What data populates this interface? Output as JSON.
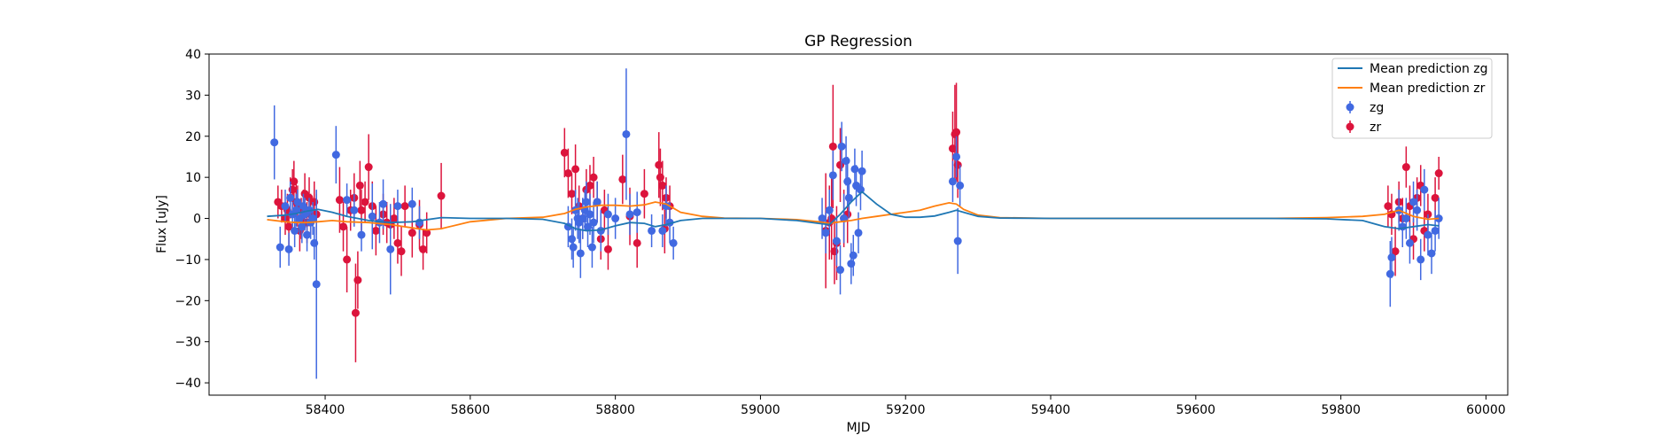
{
  "chart_data": {
    "type": "scatter",
    "title": "GP Regression",
    "xlabel": "MJD",
    "ylabel": "Flux [uJy]",
    "xlim": [
      58240,
      60030
    ],
    "ylim": [
      -43,
      40
    ],
    "xticks": [
      58400,
      58600,
      58800,
      59000,
      59200,
      59400,
      59600,
      59800,
      60000
    ],
    "yticks": [
      -40,
      -30,
      -20,
      -10,
      0,
      10,
      20,
      30,
      40
    ],
    "grid": false,
    "legend_position": "top-right",
    "colors": {
      "zg_points": "#4169e1",
      "zr_points": "#dc143c",
      "zg_mean": "#1f77b4",
      "zr_mean": "#ff7f0e"
    },
    "series": [
      {
        "name": "Mean prediction zg",
        "kind": "line",
        "x": [
          58320,
          58345,
          58360,
          58375,
          58390,
          58410,
          58430,
          58460,
          58490,
          58520,
          58560,
          58600,
          58650,
          58700,
          58730,
          58745,
          58760,
          58780,
          58800,
          58820,
          58840,
          58855,
          58870,
          58890,
          58920,
          58950,
          59000,
          59050,
          59080,
          59095,
          59110,
          59125,
          59140,
          59160,
          59180,
          59200,
          59220,
          59240,
          59260,
          59270,
          59280,
          59300,
          59330,
          59400,
          59500,
          59600,
          59700,
          59780,
          59830,
          59860,
          59880,
          59900,
          59920,
          59935
        ],
        "y": [
          0.5,
          0.8,
          1.2,
          1.8,
          2.2,
          1.5,
          0.5,
          -0.5,
          -1.0,
          -0.8,
          0.2,
          0.0,
          0.0,
          -0.2,
          -1.2,
          -2.5,
          -3.0,
          -2.8,
          -1.8,
          -1.0,
          -1.2,
          -2.0,
          -1.5,
          -0.5,
          0.0,
          0.0,
          0.0,
          -0.5,
          -1.2,
          -1.5,
          1.0,
          4.0,
          6.5,
          3.5,
          1.0,
          0.3,
          0.3,
          0.6,
          1.5,
          2.0,
          1.5,
          0.5,
          0.1,
          0.0,
          0.0,
          0.0,
          0.0,
          -0.1,
          -0.5,
          -2.0,
          -2.5,
          -2.0,
          -1.5,
          -1.8
        ]
      },
      {
        "name": "Mean prediction zr",
        "kind": "line",
        "x": [
          58320,
          58345,
          58360,
          58375,
          58390,
          58410,
          58430,
          58460,
          58490,
          58520,
          58540,
          58560,
          58600,
          58650,
          58700,
          58730,
          58745,
          58760,
          58780,
          58800,
          58820,
          58840,
          58855,
          58870,
          58890,
          58920,
          58950,
          59000,
          59050,
          59080,
          59095,
          59110,
          59125,
          59140,
          59160,
          59180,
          59200,
          59220,
          59240,
          59260,
          59270,
          59280,
          59300,
          59330,
          59400,
          59500,
          59600,
          59700,
          59780,
          59830,
          59860,
          59880,
          59900,
          59920,
          59935
        ],
        "y": [
          -0.3,
          -0.8,
          -1.0,
          -1.0,
          -0.8,
          -0.5,
          -0.8,
          -1.0,
          -1.5,
          -2.3,
          -2.8,
          -2.5,
          -0.8,
          0.0,
          0.3,
          1.2,
          2.2,
          2.8,
          3.2,
          3.2,
          3.0,
          3.3,
          4.0,
          3.5,
          1.5,
          0.5,
          0.1,
          0.0,
          -0.3,
          -0.8,
          -1.2,
          -0.8,
          -0.5,
          0.0,
          0.5,
          1.0,
          1.5,
          2.0,
          3.0,
          3.8,
          3.5,
          2.2,
          0.8,
          0.2,
          0.0,
          0.0,
          0.0,
          0.0,
          0.2,
          0.5,
          1.0,
          2.0,
          0.5,
          -0.2,
          0.0
        ]
      },
      {
        "name": "zg",
        "kind": "errorbar",
        "x": [
          58330,
          58338,
          58345,
          58350,
          58352,
          58355,
          58358,
          58360,
          58362,
          58365,
          58368,
          58370,
          58372,
          58375,
          58378,
          58380,
          58383,
          58385,
          58388,
          58415,
          58430,
          58440,
          58450,
          58465,
          58475,
          58480,
          58490,
          58500,
          58520,
          58530,
          58735,
          58740,
          58742,
          58745,
          58748,
          58750,
          58752,
          58755,
          58758,
          58760,
          58762,
          58765,
          58768,
          58770,
          58775,
          58780,
          58790,
          58800,
          58815,
          58820,
          58830,
          58850,
          58865,
          58870,
          58875,
          58880,
          59085,
          59090,
          59095,
          59100,
          59105,
          59110,
          59112,
          59115,
          59118,
          59120,
          59122,
          59125,
          59128,
          59130,
          59132,
          59135,
          59138,
          59140,
          59265,
          59270,
          59272,
          59275,
          59868,
          59870,
          59880,
          59885,
          59890,
          59895,
          59900,
          59905,
          59910,
          59915,
          59920,
          59925,
          59930,
          59935
        ],
        "y": [
          18.5,
          -7,
          3,
          -7.5,
          5,
          1,
          -3,
          2,
          4,
          0,
          -2,
          3,
          1,
          -4,
          2,
          -1,
          0,
          -6,
          -16,
          15.5,
          4.5,
          2,
          -4,
          0.5,
          -1,
          3.5,
          -7.5,
          3,
          3.5,
          -1,
          -2,
          -5,
          -7,
          2,
          0,
          -1,
          -8.5,
          0,
          2,
          4,
          -2,
          1,
          -7,
          -1,
          4,
          -3,
          1,
          0,
          20.5,
          1,
          1.5,
          -3,
          -3,
          3,
          -1,
          -6,
          0,
          -3.5,
          2,
          10.5,
          -5.5,
          -12.5,
          17.5,
          0,
          14,
          9,
          5,
          -11,
          -9,
          12,
          8,
          -3.5,
          7,
          11.5,
          9,
          15,
          -5.5,
          8,
          -13.5,
          -9.5,
          2,
          -2,
          0,
          -6,
          4,
          2,
          -10,
          7,
          -4,
          -8.5,
          -3,
          0
        ],
        "err": [
          9,
          5,
          4,
          4,
          4,
          3,
          4,
          4,
          3,
          4,
          4,
          3,
          4,
          4,
          3,
          4,
          4,
          4,
          23,
          7,
          4,
          4,
          4,
          8,
          5,
          6,
          11,
          4,
          4,
          4,
          5,
          5,
          5,
          5,
          5,
          5,
          6,
          5,
          5,
          5,
          5,
          5,
          5,
          5,
          5,
          5,
          5,
          5,
          16,
          5,
          5,
          4,
          4,
          5,
          5,
          4,
          5,
          5,
          5,
          6,
          6,
          6,
          6,
          6,
          6,
          6,
          5,
          5,
          5,
          5,
          5,
          5,
          5,
          5,
          5,
          5,
          8,
          5,
          8,
          5,
          5,
          5,
          5,
          5,
          5,
          5,
          5,
          5,
          5,
          5,
          5,
          5
        ]
      },
      {
        "name": "zr",
        "kind": "errorbar",
        "x": [
          58335,
          58340,
          58345,
          58348,
          58350,
          58352,
          58355,
          58357,
          58360,
          58362,
          58365,
          58367,
          58370,
          58372,
          58375,
          58378,
          58380,
          58385,
          58388,
          58420,
          58425,
          58430,
          58435,
          58440,
          58442,
          58445,
          58448,
          58450,
          58455,
          58460,
          58465,
          58470,
          58480,
          58485,
          58490,
          58495,
          58500,
          58505,
          58510,
          58520,
          58530,
          58535,
          58540,
          58560,
          58730,
          58735,
          58740,
          58745,
          58750,
          58755,
          58760,
          58765,
          58770,
          58775,
          58780,
          58785,
          58790,
          58810,
          58820,
          58830,
          58840,
          58860,
          58862,
          58865,
          58868,
          58870,
          58875,
          59090,
          59095,
          59098,
          59100,
          59102,
          59105,
          59110,
          59115,
          59120,
          59265,
          59268,
          59270,
          59272,
          59865,
          59870,
          59875,
          59880,
          59885,
          59890,
          59895,
          59900,
          59905,
          59910,
          59915,
          59920,
          59930,
          59935
        ],
        "y": [
          4,
          3,
          0,
          2,
          -2,
          5,
          7,
          9,
          4,
          3,
          -3,
          0,
          2,
          6,
          -1,
          5,
          1,
          4,
          1,
          4.5,
          -2,
          -10,
          2,
          5,
          -23,
          -15,
          8,
          2,
          4,
          12.5,
          3,
          -3,
          1,
          -1,
          -1.5,
          0,
          -6,
          -8,
          3,
          -3.5,
          -1.5,
          -7.5,
          -3.5,
          5.5,
          16,
          11,
          6,
          12,
          3,
          0,
          7,
          8,
          10,
          4,
          -5,
          2,
          -7.5,
          9.5,
          0.5,
          -6,
          6,
          13,
          10,
          8,
          -2.5,
          5,
          3,
          -3,
          -1,
          0,
          17.5,
          -8,
          -6,
          13,
          0,
          1,
          17,
          20.5,
          21,
          13,
          3,
          1,
          -8,
          4,
          0,
          12.5,
          3,
          -5,
          5,
          8,
          -3,
          1,
          5,
          11
        ],
        "err": [
          4,
          4,
          4,
          4,
          5,
          5,
          5,
          5,
          5,
          5,
          5,
          5,
          5,
          5,
          5,
          5,
          5,
          5,
          5,
          8,
          6,
          8,
          5,
          6,
          12,
          7,
          6,
          5,
          5,
          8,
          6,
          6,
          5,
          5,
          5,
          5,
          5,
          6,
          5,
          6,
          6,
          5,
          5,
          8,
          6,
          6,
          5,
          6,
          5,
          5,
          5,
          5,
          5,
          5,
          5,
          5,
          5,
          6,
          7,
          6,
          6,
          8,
          7,
          6,
          6,
          5,
          5,
          14,
          9,
          10,
          15,
          8,
          9,
          9,
          7,
          7,
          9,
          12,
          12,
          8,
          5,
          5,
          6,
          5,
          5,
          5,
          5,
          5,
          5,
          5,
          5,
          5,
          5,
          4
        ]
      }
    ]
  }
}
